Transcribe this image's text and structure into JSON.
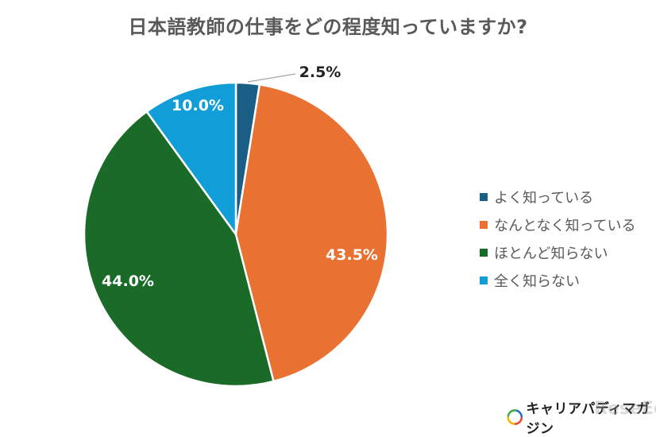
{
  "title": "日本語教師の仕事をどの程度知っていますか?",
  "chart_data": {
    "type": "pie",
    "title": "日本語教師の仕事をどの程度知っていますか?",
    "categories": [
      "よく知っている",
      "なんとなく知っている",
      "ほとんど知らない",
      "全く知らない"
    ],
    "values": [
      2.5,
      43.5,
      44.0,
      10.0
    ],
    "labels": [
      "2.5%",
      "43.5%",
      "44.0%",
      "10.0%"
    ],
    "colors": [
      "#1b5e85",
      "#e97132",
      "#1a6b27",
      "#119dd8"
    ],
    "start_angle": "12 o'clock, clockwise",
    "legend_position": "right"
  },
  "legend": {
    "items": [
      {
        "label": "よく知っている",
        "color": "#1b5e85"
      },
      {
        "label": "なんとなく知っている",
        "color": "#e97132"
      },
      {
        "label": "ほとんど知らない",
        "color": "#1a6b27"
      },
      {
        "label": "全く知らない",
        "color": "#119dd8"
      }
    ]
  },
  "logo": {
    "text": "キャリアパディマガジン",
    "watermark": "ReseEd"
  }
}
